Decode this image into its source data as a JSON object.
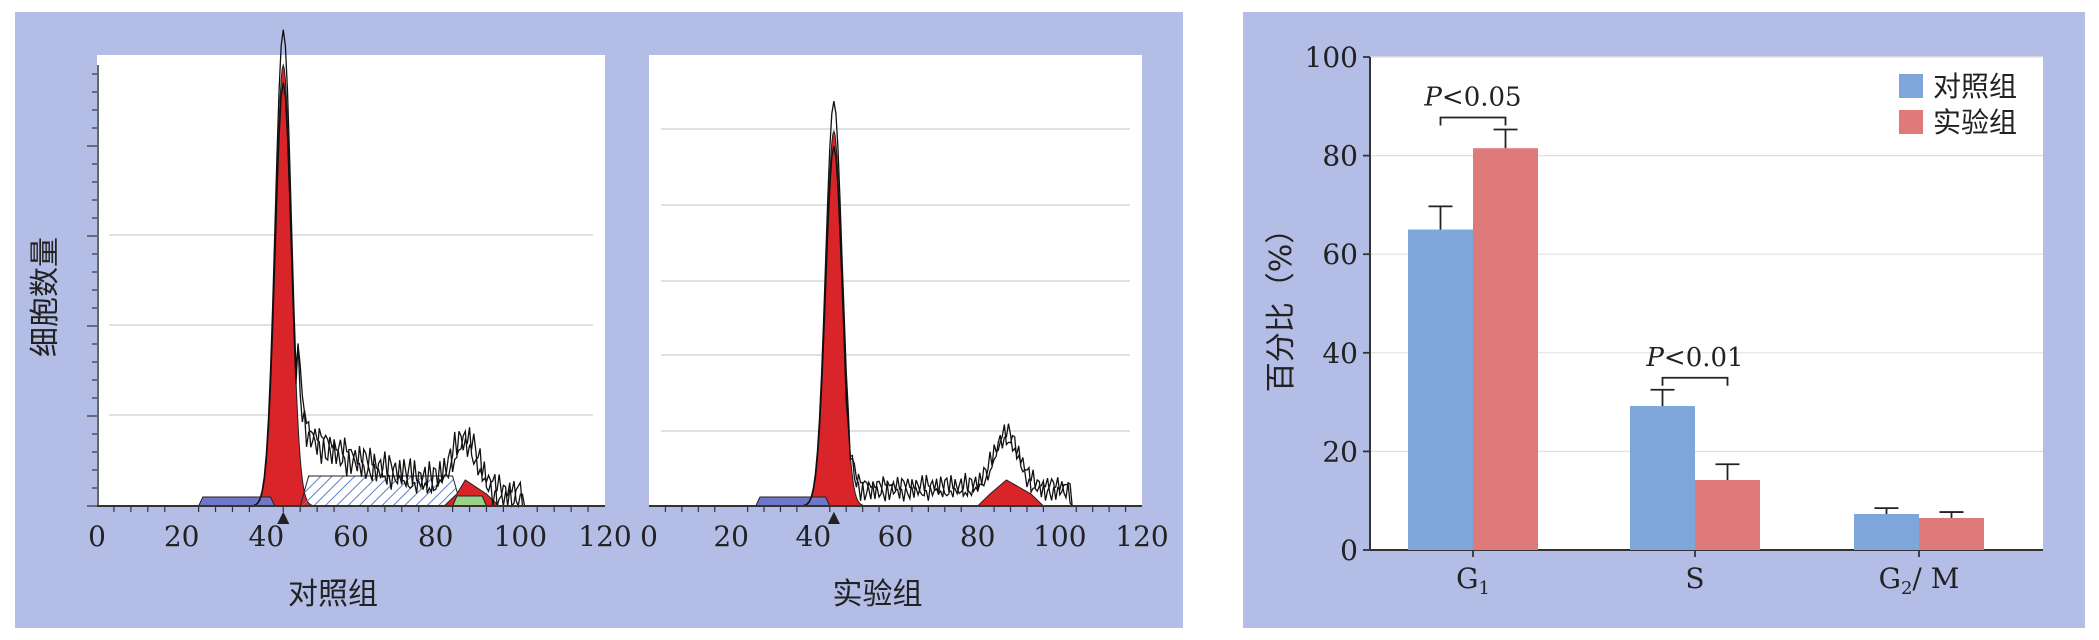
{
  "colors": {
    "panel_bg": "#b3bde6",
    "control": "#7fa6db",
    "experiment": "#de7b7a",
    "hist_fill": "#d9242a",
    "hist_blue": "#6f77c8",
    "hist_green": "#9bd28a"
  },
  "histograms": {
    "y_label": "细胞数量",
    "x_ticks": [
      "0",
      "20",
      "40",
      "60",
      "80",
      "100",
      "120"
    ],
    "panels": [
      {
        "name": "对照组",
        "peak_marker": "▲"
      },
      {
        "name": "实验组",
        "peak_marker": "▲"
      }
    ]
  },
  "chart_data": [
    {
      "type": "histogram",
      "panel": "对照组",
      "xlim": [
        0,
        120
      ],
      "x_ticks": [
        0,
        20,
        40,
        60,
        80,
        100,
        120
      ],
      "ylabel": "细胞数量",
      "xlabel": "对照组",
      "g1_peak_x": 44,
      "g2_peak_x": 88
    },
    {
      "type": "histogram",
      "panel": "实验组",
      "xlim": [
        0,
        120
      ],
      "x_ticks": [
        0,
        20,
        40,
        60,
        80,
        100,
        120
      ],
      "ylabel": "细胞数量",
      "xlabel": "实验组",
      "g1_peak_x": 45,
      "g2_peak_x": 88
    },
    {
      "type": "bar",
      "categories": [
        "G1",
        "S",
        "G2/M"
      ],
      "category_labels": [
        {
          "base": "G",
          "sub": "1",
          "rest": ""
        },
        {
          "base": "S",
          "sub": "",
          "rest": ""
        },
        {
          "base": "G",
          "sub": "2",
          "rest": "/ M"
        }
      ],
      "series": [
        {
          "name": "对照组",
          "values": [
            65,
            29.2,
            7.3
          ],
          "errors": [
            4.7,
            3.3,
            1.2
          ]
        },
        {
          "name": "实验组",
          "values": [
            81.5,
            14.2,
            6.5
          ],
          "errors": [
            3.8,
            3.2,
            1.2
          ]
        }
      ],
      "ylabel": "百分比（%）",
      "ylim": [
        0,
        100
      ],
      "y_ticks": [
        "0",
        "20",
        "40",
        "60",
        "80",
        "100"
      ],
      "grid": true,
      "legend": "top-right",
      "annotations": [
        {
          "category": "G1",
          "label_italic": "P",
          "label_rest": "<0.05"
        },
        {
          "category": "S",
          "label_italic": "P",
          "label_rest": "<0.01"
        }
      ]
    }
  ]
}
